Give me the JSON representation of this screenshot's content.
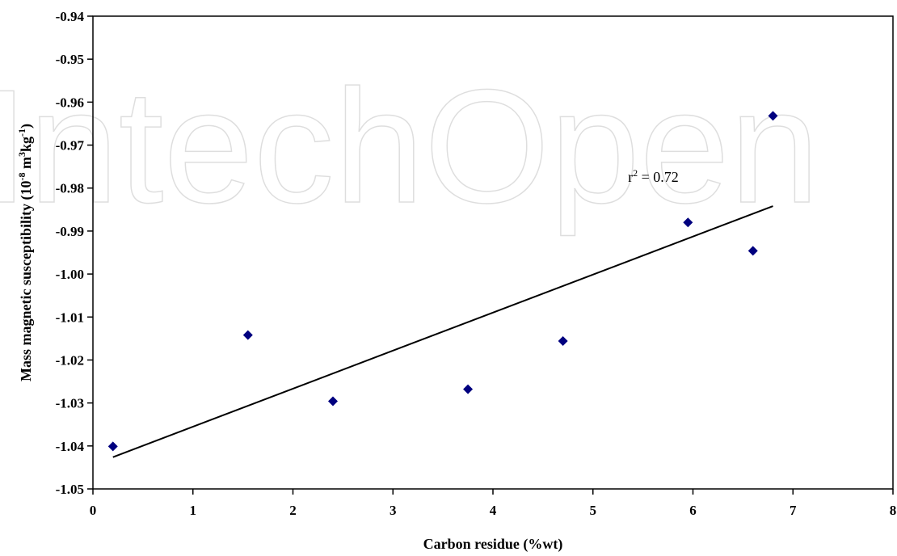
{
  "watermark": "IntechOpen",
  "chart_data": {
    "type": "scatter",
    "title": "",
    "xlabel": "Carbon residue (%wt)",
    "ylabel": {
      "prefix": "Mass magnetic susceptibility (10",
      "exp1": "-8",
      "mid1": " m",
      "exp2": "3",
      "mid2": "kg",
      "exp3": "-1",
      "suffix": ")"
    },
    "xlim": [
      0,
      8
    ],
    "ylim": [
      -1.05,
      -0.94
    ],
    "xticks": [
      0,
      1,
      2,
      3,
      4,
      5,
      6,
      7,
      8
    ],
    "yticks": [
      -0.94,
      -0.95,
      -0.96,
      -0.97,
      -0.98,
      -0.99,
      -1.0,
      -1.01,
      -1.02,
      -1.03,
      -1.04,
      -1.05
    ],
    "ytick_labels": [
      "-0.94",
      "-0.95",
      "-0.96",
      "-0.97",
      "-0.98",
      "-0.99",
      "-1.00",
      "-1.01",
      "-1.02",
      "-1.03",
      "-1.04",
      "-1.05"
    ],
    "grid": false,
    "marker_color": "#00007f",
    "series": [
      {
        "points": [
          {
            "x": 0.2,
            "y": -1.0401
          },
          {
            "x": 1.55,
            "y": -1.0142
          },
          {
            "x": 2.4,
            "y": -1.0296
          },
          {
            "x": 3.75,
            "y": -1.0268
          },
          {
            "x": 4.7,
            "y": -1.0156
          },
          {
            "x": 5.95,
            "y": -0.988
          },
          {
            "x": 6.6,
            "y": -0.9946
          },
          {
            "x": 6.8,
            "y": -0.9632
          }
        ]
      }
    ],
    "trendline": {
      "x": [
        0.2,
        6.8
      ],
      "y": [
        -1.0426,
        -0.9842
      ]
    },
    "annotation": {
      "base": "r",
      "exp": "2",
      "rest": " = 0.72",
      "x": 5.35,
      "y": -0.9785
    }
  }
}
